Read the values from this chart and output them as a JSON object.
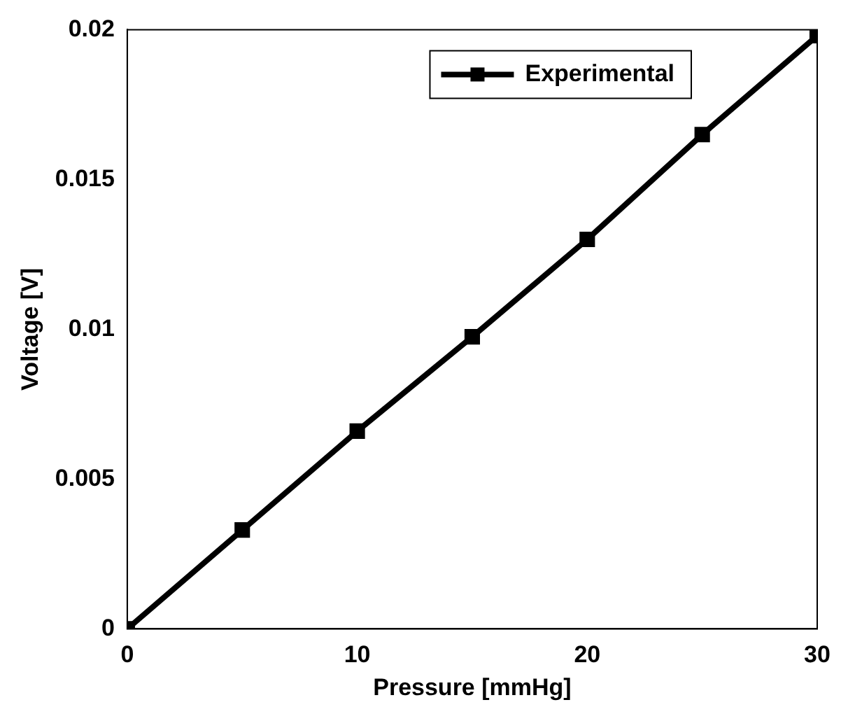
{
  "chart_data": {
    "type": "line",
    "xlabel": "Pressure [mmHg]",
    "ylabel": "Voltage [V]",
    "x": [
      0,
      5,
      10,
      15,
      20,
      25,
      30
    ],
    "series": [
      {
        "name": "Experimental",
        "color": "#000000",
        "values": [
          0,
          0.0033,
          0.0066,
          0.00975,
          0.013,
          0.0165,
          0.0198
        ]
      }
    ],
    "xlim": [
      0,
      30
    ],
    "xticks": [
      0,
      10,
      20,
      30
    ],
    "ylim": [
      0,
      0.02
    ],
    "yticks": [
      0,
      0.005,
      0.01,
      0.015,
      0.02
    ],
    "grid": false,
    "legend": "top right",
    "marker": "square",
    "line_style": "solid"
  }
}
